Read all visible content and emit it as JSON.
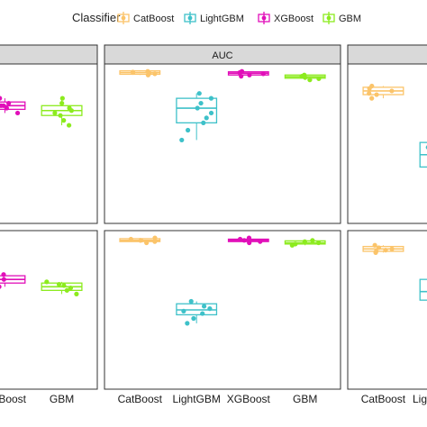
{
  "legend": {
    "title": "Classifier",
    "items": [
      {
        "label": "CatBoost",
        "color": "#FBC46A"
      },
      {
        "label": "LightGBM",
        "color": "#3EC1C9"
      },
      {
        "label": "XGBoost",
        "color": "#E10FB9"
      },
      {
        "label": "GBM",
        "color": "#8CEB1E"
      }
    ]
  },
  "chart_data": {
    "type": "box",
    "facet_layout": "2 rows x 3 columns, cropped at left and right edges",
    "x_categories": [
      "CatBoost",
      "LightGBM",
      "XGBoost",
      "GBM"
    ],
    "x_tick_labels_left_panel": [
      "Boost",
      "GBM"
    ],
    "x_tick_labels_right_panel": [
      "CatBoost",
      "Ligh"
    ],
    "ylim": [
      0,
      1
    ],
    "grid": false,
    "legend_position": "top",
    "panels": [
      {
        "strip": "",
        "row": 1,
        "col": 1,
        "boxes": [
          {
            "category": "XGBoost",
            "median": 0.83,
            "q1": 0.815,
            "q3": 0.845,
            "points": [
              0.8,
              0.81,
              0.82,
              0.83,
              0.83,
              0.84,
              0.85,
              0.86
            ]
          },
          {
            "category": "GBM",
            "median": 0.81,
            "q1": 0.79,
            "q3": 0.83,
            "points": [
              0.75,
              0.77,
              0.79,
              0.8,
              0.81,
              0.82,
              0.84,
              0.86
            ]
          }
        ]
      },
      {
        "strip": "AUC",
        "row": 1,
        "col": 2,
        "boxes": [
          {
            "category": "CatBoost",
            "median": 0.965,
            "q1": 0.958,
            "q3": 0.972,
            "points": [
              0.955,
              0.96,
              0.962,
              0.965,
              0.967,
              0.97
            ]
          },
          {
            "category": "LightGBM",
            "median": 0.82,
            "q1": 0.76,
            "q3": 0.86,
            "points": [
              0.69,
              0.73,
              0.76,
              0.78,
              0.8,
              0.82,
              0.84,
              0.86,
              0.88
            ]
          },
          {
            "category": "XGBoost",
            "median": 0.962,
            "q1": 0.955,
            "q3": 0.968,
            "points": [
              0.95,
              0.955,
              0.96,
              0.965,
              0.97
            ]
          },
          {
            "category": "GBM",
            "median": 0.948,
            "q1": 0.942,
            "q3": 0.955,
            "points": [
              0.935,
              0.94,
              0.945,
              0.95,
              0.955
            ]
          }
        ]
      },
      {
        "strip": "",
        "row": 1,
        "col": 3,
        "boxes": [
          {
            "category": "CatBoost",
            "median": 0.89,
            "q1": 0.875,
            "q3": 0.905,
            "points": [
              0.86,
              0.875,
              0.88,
              0.89,
              0.9,
              0.91
            ]
          },
          {
            "category": "LightGBM",
            "median": 0.63,
            "q1": 0.58,
            "q3": 0.68,
            "points": [
              0.58,
              0.63,
              0.66
            ]
          }
        ]
      },
      {
        "strip": "",
        "row": 2,
        "col": 1,
        "boxes": [
          {
            "category": "XGBoost",
            "median": 0.8,
            "q1": 0.785,
            "q3": 0.815,
            "points": [
              0.77,
              0.785,
              0.79,
              0.8,
              0.81,
              0.82
            ]
          },
          {
            "category": "GBM",
            "median": 0.77,
            "q1": 0.755,
            "q3": 0.785,
            "points": [
              0.74,
              0.755,
              0.765,
              0.775,
              0.78,
              0.79
            ]
          }
        ]
      },
      {
        "strip": "",
        "row": 2,
        "col": 2,
        "boxes": [
          {
            "category": "CatBoost",
            "median": 0.96,
            "q1": 0.955,
            "q3": 0.967,
            "points": [
              0.95,
              0.955,
              0.96,
              0.965,
              0.97
            ]
          },
          {
            "category": "LightGBM",
            "median": 0.675,
            "q1": 0.655,
            "q3": 0.7,
            "points": [
              0.62,
              0.64,
              0.66,
              0.67,
              0.68,
              0.69,
              0.71
            ]
          },
          {
            "category": "XGBoost",
            "median": 0.96,
            "q1": 0.955,
            "q3": 0.965,
            "points": [
              0.95,
              0.955,
              0.96,
              0.965,
              0.97
            ]
          },
          {
            "category": "GBM",
            "median": 0.95,
            "q1": 0.945,
            "q3": 0.958,
            "points": [
              0.94,
              0.945,
              0.95,
              0.955,
              0.96
            ]
          }
        ]
      },
      {
        "strip": "",
        "row": 2,
        "col": 3,
        "boxes": [
          {
            "category": "CatBoost",
            "median": 0.925,
            "q1": 0.915,
            "q3": 0.935,
            "points": [
              0.91,
              0.915,
              0.92,
              0.925,
              0.93,
              0.94
            ]
          },
          {
            "category": "LightGBM",
            "median": 0.75,
            "q1": 0.715,
            "q3": 0.8,
            "points": [
              0.72,
              0.75,
              0.78
            ]
          }
        ]
      }
    ]
  }
}
